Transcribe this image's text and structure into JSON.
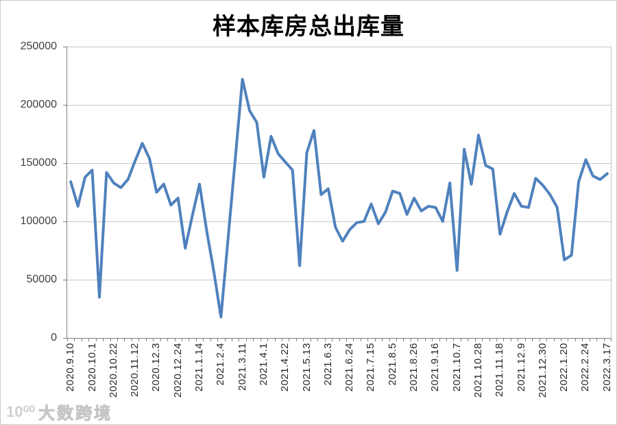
{
  "watermark": {
    "logo": "10⁰⁰",
    "text": "大数跨境"
  },
  "colors": {
    "line": "#4f81bd",
    "grid": "#c6c6c6",
    "axis": "#7f7f7f",
    "tick": "#7f7f7f",
    "title": "#000000",
    "x_label": "#262626",
    "y_label": "#3f3f3f",
    "watermark": "#cdcdcd",
    "frame": "#c9c9c9",
    "background": "#ffffff"
  },
  "chart_data": {
    "type": "line",
    "title": "样本库房总出库量",
    "xlabel": "",
    "ylabel": "",
    "ylim": [
      0,
      250000
    ],
    "ytick_interval": 50000,
    "ytick_labels": [
      "0",
      "50000",
      "100000",
      "150000",
      "200000",
      "250000"
    ],
    "grid": "horizontal",
    "legend": "none",
    "x_tick_label_rotation": 90,
    "label_every": 3,
    "x_tick_labels": [
      "2020.9.10",
      "2020.10.1",
      "2020.10.22",
      "2020.11.12",
      "2020.12.3",
      "2020.12.24",
      "2021.1.14",
      "2021.2.4",
      "2021.3.11",
      "2021.4.1",
      "2021.4.22",
      "2021.5.13",
      "2021.6.3",
      "2021.6.24",
      "2021.7.15",
      "2021.8.5",
      "2021.8.26",
      "2021.9.16",
      "2021.10.7",
      "2021.10.28",
      "2021.11.18",
      "2021.12.9",
      "2021.12.30",
      "2022.1.20",
      "2022.2.24",
      "2022.3.17"
    ],
    "values": [
      134000,
      113000,
      138000,
      144000,
      35000,
      142000,
      133000,
      129000,
      136000,
      152000,
      167000,
      154000,
      125000,
      132000,
      114000,
      120000,
      77000,
      105000,
      132000,
      92000,
      57000,
      18000,
      86000,
      154000,
      222000,
      195000,
      185000,
      138000,
      173000,
      158000,
      151000,
      144000,
      62000,
      159000,
      178000,
      123000,
      128000,
      95000,
      83000,
      93000,
      99000,
      100000,
      115000,
      98000,
      108000,
      126000,
      124000,
      106000,
      120000,
      109000,
      113000,
      112000,
      100000,
      133000,
      58000,
      162000,
      132000,
      174000,
      148000,
      145000,
      89000,
      108000,
      124000,
      113000,
      112000,
      137000,
      131000,
      123000,
      112000,
      67000,
      71000,
      134000,
      153000,
      139000,
      136000,
      141000
    ]
  }
}
